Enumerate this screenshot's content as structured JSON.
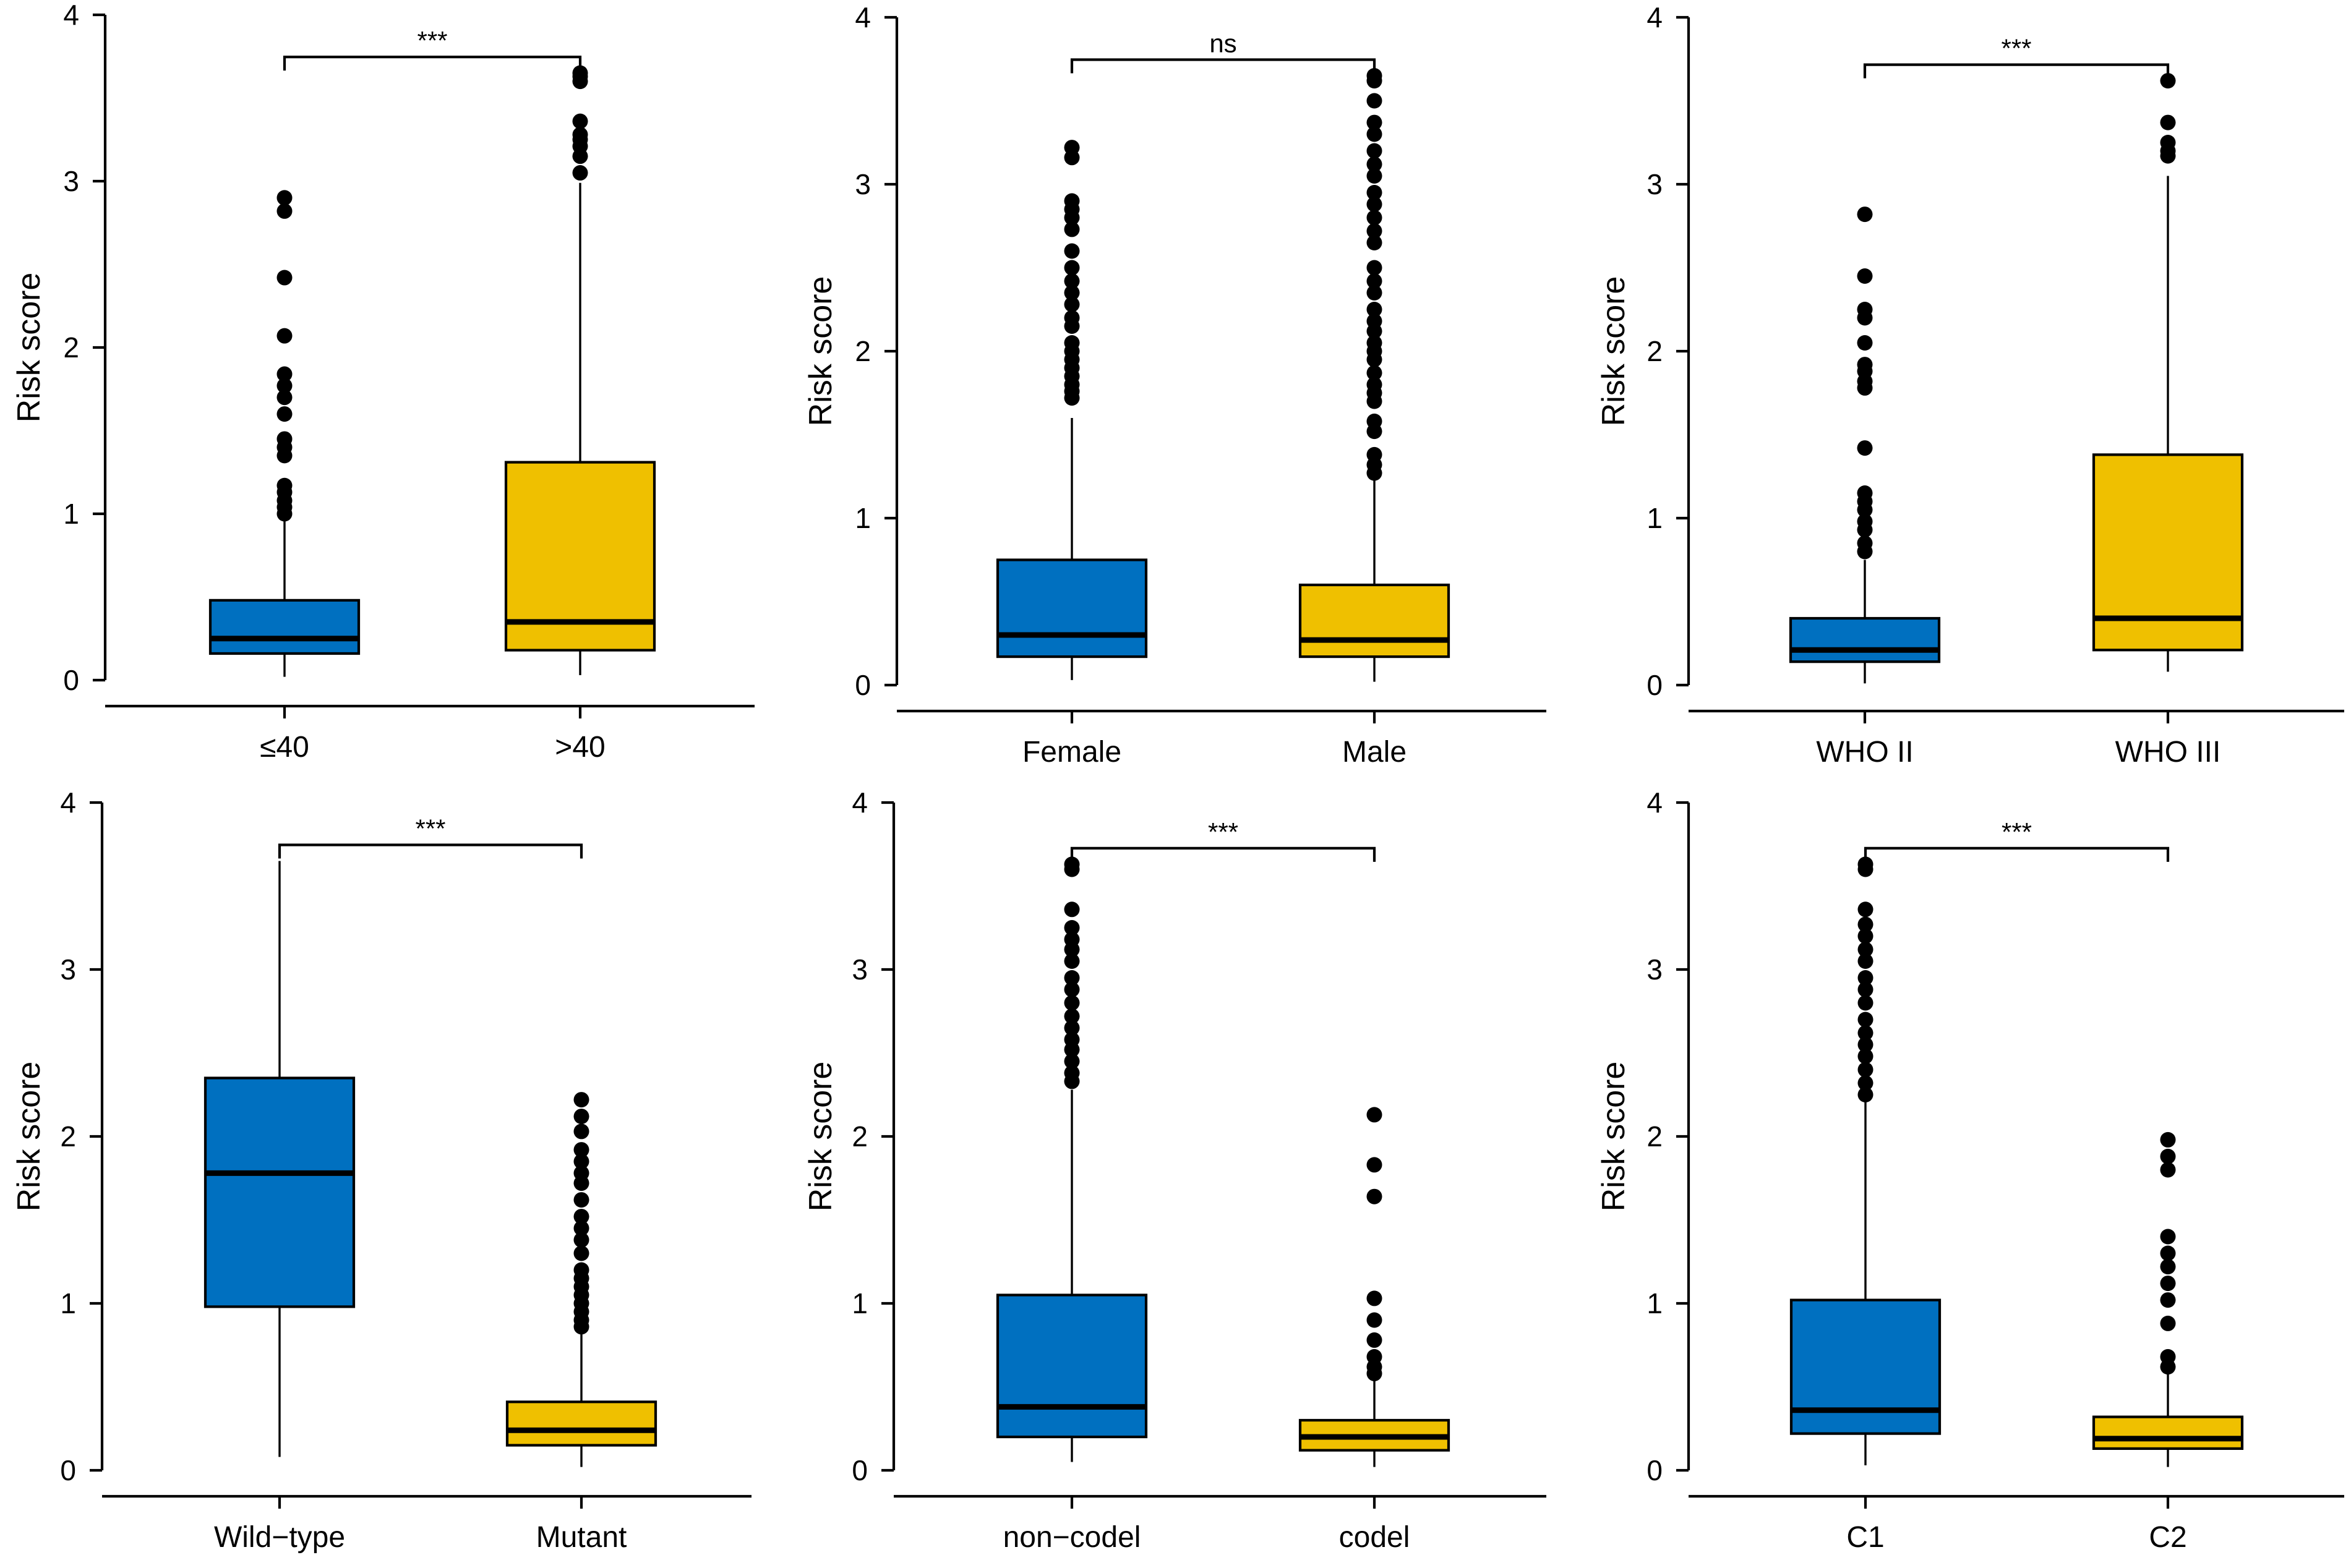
{
  "colors": {
    "group1": "#0070C0",
    "group2": "#EFC000",
    "ink": "#000000"
  },
  "chart_data": [
    {
      "type": "box",
      "title": "",
      "xlabel": "",
      "ylabel": "Risk score",
      "ylim": [
        0,
        4
      ],
      "yticks": [
        "0",
        "1",
        "2",
        "3",
        "4"
      ],
      "categories": [
        "≤40",
        ">40"
      ],
      "significance": "***",
      "boxes": [
        {
          "name": "≤40",
          "whisker_low": 0.02,
          "q1": 0.16,
          "median": 0.25,
          "q3": 0.48,
          "whisker_high": 0.97,
          "outliers": [
            1.0,
            1.04,
            1.08,
            1.13,
            1.17,
            1.35,
            1.4,
            1.45,
            1.6,
            1.7,
            1.77,
            1.84,
            2.07,
            2.42,
            2.82,
            2.9
          ]
        },
        {
          "name": ">40",
          "whisker_low": 0.03,
          "q1": 0.18,
          "median": 0.35,
          "q3": 1.31,
          "whisker_high": 2.99,
          "outliers": [
            3.05,
            3.15,
            3.21,
            3.25,
            3.28,
            3.36,
            3.6,
            3.63,
            3.65
          ]
        }
      ]
    },
    {
      "type": "box",
      "title": "",
      "xlabel": "",
      "ylabel": "Risk score",
      "ylim": [
        0,
        4
      ],
      "yticks": [
        "0",
        "1",
        "2",
        "3",
        "4"
      ],
      "categories": [
        "Female",
        "Male"
      ],
      "significance": "ns",
      "boxes": [
        {
          "name": "Female",
          "whisker_low": 0.03,
          "q1": 0.17,
          "median": 0.3,
          "q3": 0.75,
          "whisker_high": 1.6,
          "outliers": [
            1.72,
            1.76,
            1.8,
            1.85,
            1.9,
            1.95,
            2.0,
            2.05,
            2.15,
            2.2,
            2.28,
            2.35,
            2.42,
            2.5,
            2.6,
            2.73,
            2.8,
            2.85,
            2.9,
            3.16,
            3.22
          ]
        },
        {
          "name": "Male",
          "whisker_low": 0.02,
          "q1": 0.17,
          "median": 0.27,
          "q3": 0.6,
          "whisker_high": 1.23,
          "outliers": [
            1.27,
            1.32,
            1.38,
            1.52,
            1.58,
            1.7,
            1.75,
            1.8,
            1.87,
            1.95,
            2.0,
            2.05,
            2.12,
            2.18,
            2.25,
            2.35,
            2.42,
            2.5,
            2.65,
            2.72,
            2.8,
            2.88,
            2.95,
            3.05,
            3.12,
            3.2,
            3.3,
            3.37,
            3.5,
            3.62,
            3.65
          ]
        }
      ]
    },
    {
      "type": "box",
      "title": "",
      "xlabel": "",
      "ylabel": "Risk score",
      "ylim": [
        0,
        4
      ],
      "yticks": [
        "0",
        "1",
        "2",
        "3",
        "4"
      ],
      "categories": [
        "WHO II",
        "WHO III"
      ],
      "significance": "***",
      "boxes": [
        {
          "name": "WHO II",
          "whisker_low": 0.01,
          "q1": 0.14,
          "median": 0.21,
          "q3": 0.4,
          "whisker_high": 0.75,
          "outliers": [
            0.8,
            0.85,
            0.93,
            0.98,
            1.05,
            1.1,
            1.15,
            1.42,
            1.78,
            1.82,
            1.88,
            1.92,
            2.05,
            2.2,
            2.25,
            2.45,
            2.82
          ]
        },
        {
          "name": "WHO III",
          "whisker_low": 0.08,
          "q1": 0.21,
          "median": 0.4,
          "q3": 1.38,
          "whisker_high": 3.05,
          "outliers": [
            3.17,
            3.2,
            3.25,
            3.37,
            3.62
          ]
        }
      ]
    },
    {
      "type": "box",
      "title": "",
      "xlabel": "",
      "ylabel": "Risk score",
      "ylim": [
        0,
        4
      ],
      "yticks": [
        "0",
        "1",
        "2",
        "3",
        "4"
      ],
      "categories": [
        "Wild−type",
        "Mutant"
      ],
      "significance": "***",
      "boxes": [
        {
          "name": "Wild−type",
          "whisker_low": 0.08,
          "q1": 0.98,
          "median": 1.78,
          "q3": 2.35,
          "whisker_high": 3.65,
          "outliers": []
        },
        {
          "name": "Mutant",
          "whisker_low": 0.02,
          "q1": 0.15,
          "median": 0.24,
          "q3": 0.41,
          "whisker_high": 0.82,
          "outliers": [
            0.86,
            0.9,
            0.95,
            1.0,
            1.05,
            1.1,
            1.15,
            1.2,
            1.3,
            1.38,
            1.45,
            1.52,
            1.62,
            1.72,
            1.78,
            1.85,
            1.92,
            2.03,
            2.12,
            2.22
          ]
        }
      ]
    },
    {
      "type": "box",
      "title": "",
      "xlabel": "",
      "ylabel": "Risk score",
      "ylim": [
        0,
        4
      ],
      "yticks": [
        "0",
        "1",
        "2",
        "3",
        "4"
      ],
      "categories": [
        "non−codel",
        "codel"
      ],
      "significance": "***",
      "boxes": [
        {
          "name": "non−codel",
          "whisker_low": 0.05,
          "q1": 0.2,
          "median": 0.38,
          "q3": 1.05,
          "whisker_high": 2.28,
          "outliers": [
            2.33,
            2.38,
            2.45,
            2.52,
            2.58,
            2.65,
            2.72,
            2.8,
            2.88,
            2.95,
            3.05,
            3.12,
            3.18,
            3.25,
            3.36,
            3.6,
            3.63
          ]
        },
        {
          "name": "codel",
          "whisker_low": 0.02,
          "q1": 0.12,
          "median": 0.2,
          "q3": 0.3,
          "whisker_high": 0.55,
          "outliers": [
            0.58,
            0.62,
            0.68,
            0.78,
            0.9,
            1.03,
            1.64,
            1.83,
            2.13
          ]
        }
      ]
    },
    {
      "type": "box",
      "title": "",
      "xlabel": "",
      "ylabel": "Risk score",
      "ylim": [
        0,
        4
      ],
      "yticks": [
        "0",
        "1",
        "2",
        "3",
        "4"
      ],
      "categories": [
        "C1",
        "C2"
      ],
      "significance": "***",
      "boxes": [
        {
          "name": "C1",
          "whisker_low": 0.03,
          "q1": 0.22,
          "median": 0.36,
          "q3": 1.02,
          "whisker_high": 2.22,
          "outliers": [
            2.25,
            2.32,
            2.4,
            2.48,
            2.55,
            2.62,
            2.7,
            2.8,
            2.88,
            2.95,
            3.05,
            3.12,
            3.2,
            3.27,
            3.36,
            3.6,
            3.63
          ]
        },
        {
          "name": "C2",
          "whisker_low": 0.02,
          "q1": 0.13,
          "median": 0.19,
          "q3": 0.32,
          "whisker_high": 0.58,
          "outliers": [
            0.62,
            0.68,
            0.88,
            1.02,
            1.12,
            1.22,
            1.3,
            1.4,
            1.8,
            1.88,
            1.98
          ]
        }
      ]
    }
  ]
}
